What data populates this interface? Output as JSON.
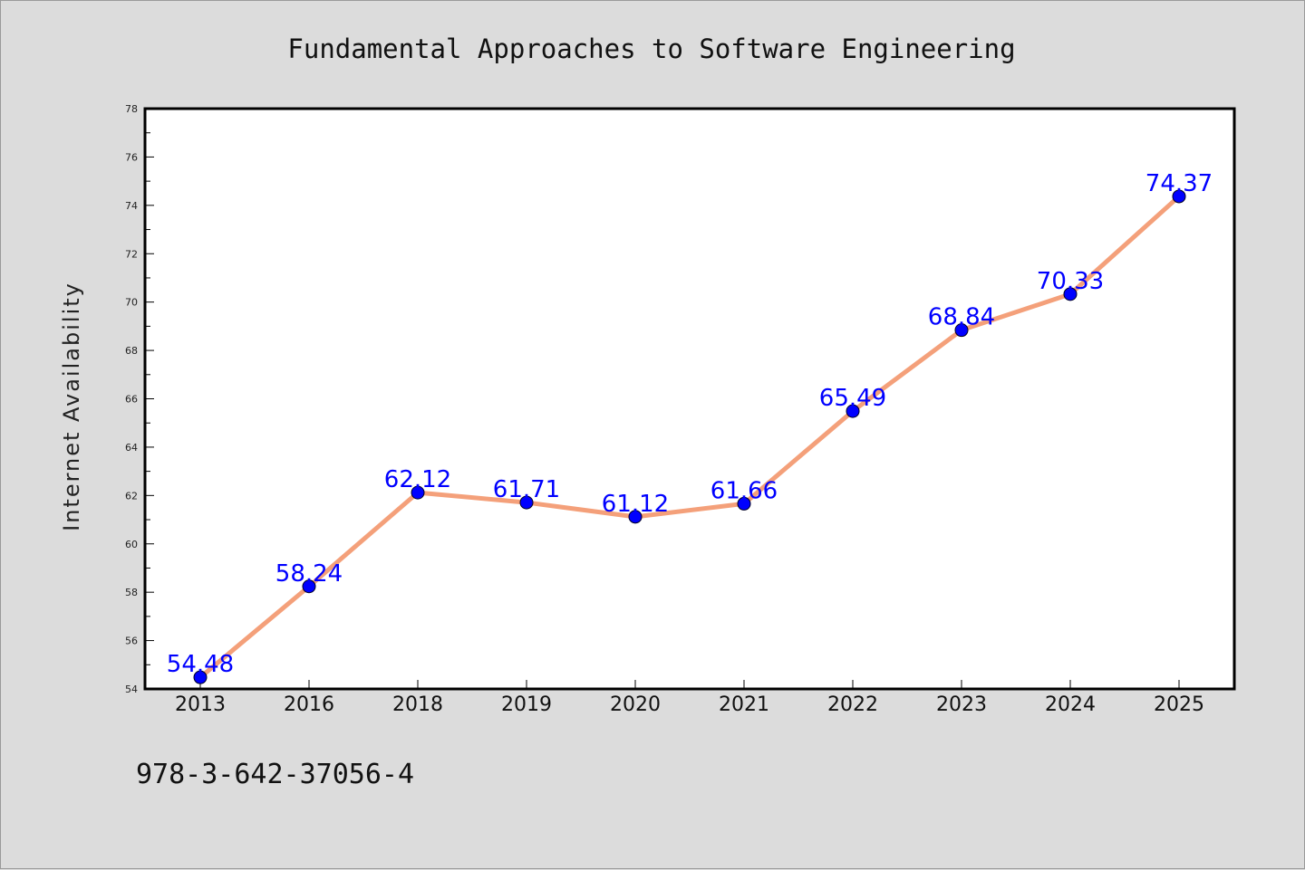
{
  "chart_data": {
    "type": "line",
    "title": "Fundamental Approaches to Software Engineering",
    "xlabel": "",
    "ylabel": "Internet Availability",
    "categories": [
      "2013",
      "2016",
      "2018",
      "2019",
      "2020",
      "2021",
      "2022",
      "2023",
      "2024",
      "2025"
    ],
    "series": [
      {
        "values": [
          54.48,
          58.24,
          62.12,
          61.71,
          61.12,
          61.66,
          65.49,
          68.84,
          70.33,
          74.37
        ],
        "data_labels": [
          "54.48",
          "58.24",
          "62.12",
          "61.71",
          "61.12",
          "61.66",
          "65.49",
          "68.84",
          "70.33",
          "74.37"
        ],
        "line_color": "#f4a07a",
        "marker_color": "#0000ff"
      }
    ],
    "ylim": [
      54,
      78
    ],
    "y_ticks": [
      "54",
      "56",
      "58",
      "60",
      "62",
      "64",
      "66",
      "68",
      "70",
      "72",
      "74",
      "76",
      "78"
    ],
    "grid": false,
    "legend": "none"
  },
  "footer": {
    "isbn": "978-3-642-37056-4"
  },
  "colors": {
    "background": "#dcdcdc",
    "plot_background": "#ffffff"
  }
}
